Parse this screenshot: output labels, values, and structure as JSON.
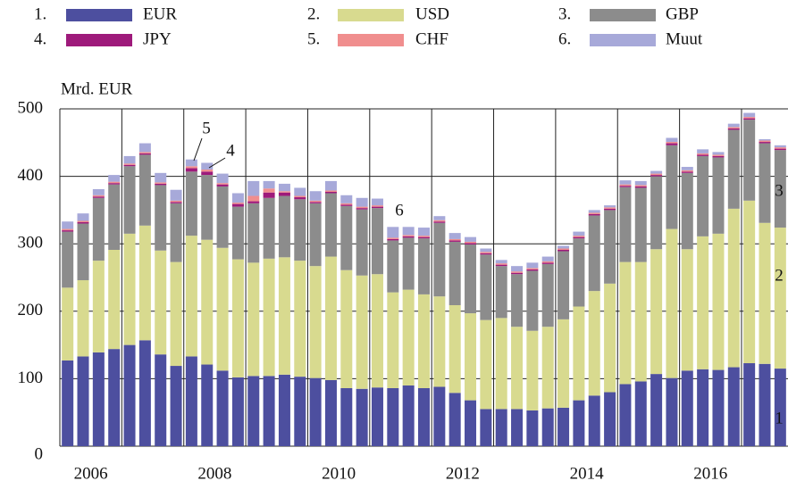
{
  "chart_data": {
    "type": "stacked_bar",
    "y_axis_label": "Mrd. EUR",
    "legend_labels": [
      "1.",
      "2.",
      "3.",
      "4.",
      "5.",
      "6."
    ],
    "categories": [
      "2006",
      null,
      null,
      null,
      null,
      null,
      null,
      null,
      "2008",
      null,
      null,
      null,
      null,
      null,
      null,
      null,
      "2010",
      null,
      null,
      null,
      null,
      null,
      null,
      null,
      "2012",
      null,
      null,
      null,
      null,
      null,
      null,
      null,
      "2014",
      null,
      null,
      null,
      null,
      null,
      null,
      null,
      "2016",
      null,
      null,
      null,
      null,
      null,
      null
    ],
    "series": [
      {
        "name": "EUR",
        "color": "#4d4f9f",
        "values": [
          127,
          133,
          139,
          144,
          150,
          157,
          136,
          119,
          133,
          121,
          112,
          102,
          104,
          104,
          106,
          103,
          101,
          98,
          86,
          85,
          87,
          86,
          90,
          86,
          88,
          79,
          68,
          55,
          55,
          55,
          53,
          56,
          57,
          68,
          75,
          80,
          92,
          96,
          107,
          101,
          112,
          114,
          113,
          117,
          123,
          122,
          115
        ]
      },
      {
        "name": "USD",
        "color": "#d8da8f",
        "values": [
          108,
          113,
          136,
          147,
          165,
          170,
          154,
          154,
          179,
          185,
          182,
          175,
          168,
          174,
          174,
          172,
          166,
          183,
          175,
          168,
          168,
          142,
          142,
          139,
          134,
          130,
          129,
          132,
          135,
          122,
          118,
          121,
          131,
          139,
          155,
          161,
          181,
          177,
          185,
          221,
          180,
          197,
          202,
          235,
          241,
          209,
          209
        ]
      },
      {
        "name": "GBP",
        "color": "#8c8c8c",
        "values": [
          83,
          84,
          93,
          97,
          100,
          105,
          97,
          87,
          95,
          96,
          91,
          78,
          88,
          90,
          91,
          91,
          93,
          94,
          95,
          98,
          98,
          77,
          77,
          83,
          109,
          94,
          102,
          97,
          77,
          78,
          89,
          93,
          101,
          101,
          112,
          109,
          111,
          110,
          108,
          124,
          113,
          119,
          113,
          117,
          120,
          118,
          115
        ]
      },
      {
        "name": "JPY",
        "color": "#9e1a7b",
        "values": [
          2,
          2,
          2,
          2,
          2,
          2,
          2,
          2,
          5,
          5,
          3,
          4,
          3,
          8,
          5,
          3,
          2,
          2,
          2,
          2,
          2,
          2,
          2,
          2,
          2,
          2,
          2,
          2,
          2,
          2,
          2,
          2,
          2,
          2,
          2,
          2,
          2,
          2,
          2,
          3,
          2,
          2,
          2,
          2,
          2,
          2,
          2
        ]
      },
      {
        "name": "CHF",
        "color": "#f08e8e",
        "values": [
          2,
          2,
          2,
          2,
          2,
          2,
          2,
          2,
          3,
          3,
          2,
          2,
          8,
          6,
          2,
          2,
          2,
          2,
          2,
          2,
          2,
          2,
          2,
          2,
          2,
          2,
          2,
          2,
          2,
          2,
          2,
          2,
          2,
          2,
          2,
          2,
          2,
          2,
          2,
          2,
          2,
          2,
          2,
          2,
          2,
          2,
          2
        ]
      },
      {
        "name": "Muut",
        "color": "#a7a9d9",
        "values": [
          11,
          11,
          9,
          10,
          11,
          13,
          14,
          16,
          10,
          10,
          14,
          14,
          22,
          11,
          11,
          12,
          14,
          14,
          12,
          13,
          10,
          16,
          12,
          12,
          6,
          9,
          7,
          5,
          5,
          8,
          8,
          7,
          4,
          6,
          4,
          3,
          6,
          6,
          4,
          6,
          5,
          6,
          4,
          5,
          6,
          2,
          3
        ]
      }
    ],
    "annotations": [
      "5",
      "4",
      "6",
      "3",
      "2",
      "1"
    ],
    "ylim": [
      0,
      500
    ],
    "yticks": [
      0,
      100,
      200,
      300,
      400,
      500
    ],
    "grid": true
  }
}
